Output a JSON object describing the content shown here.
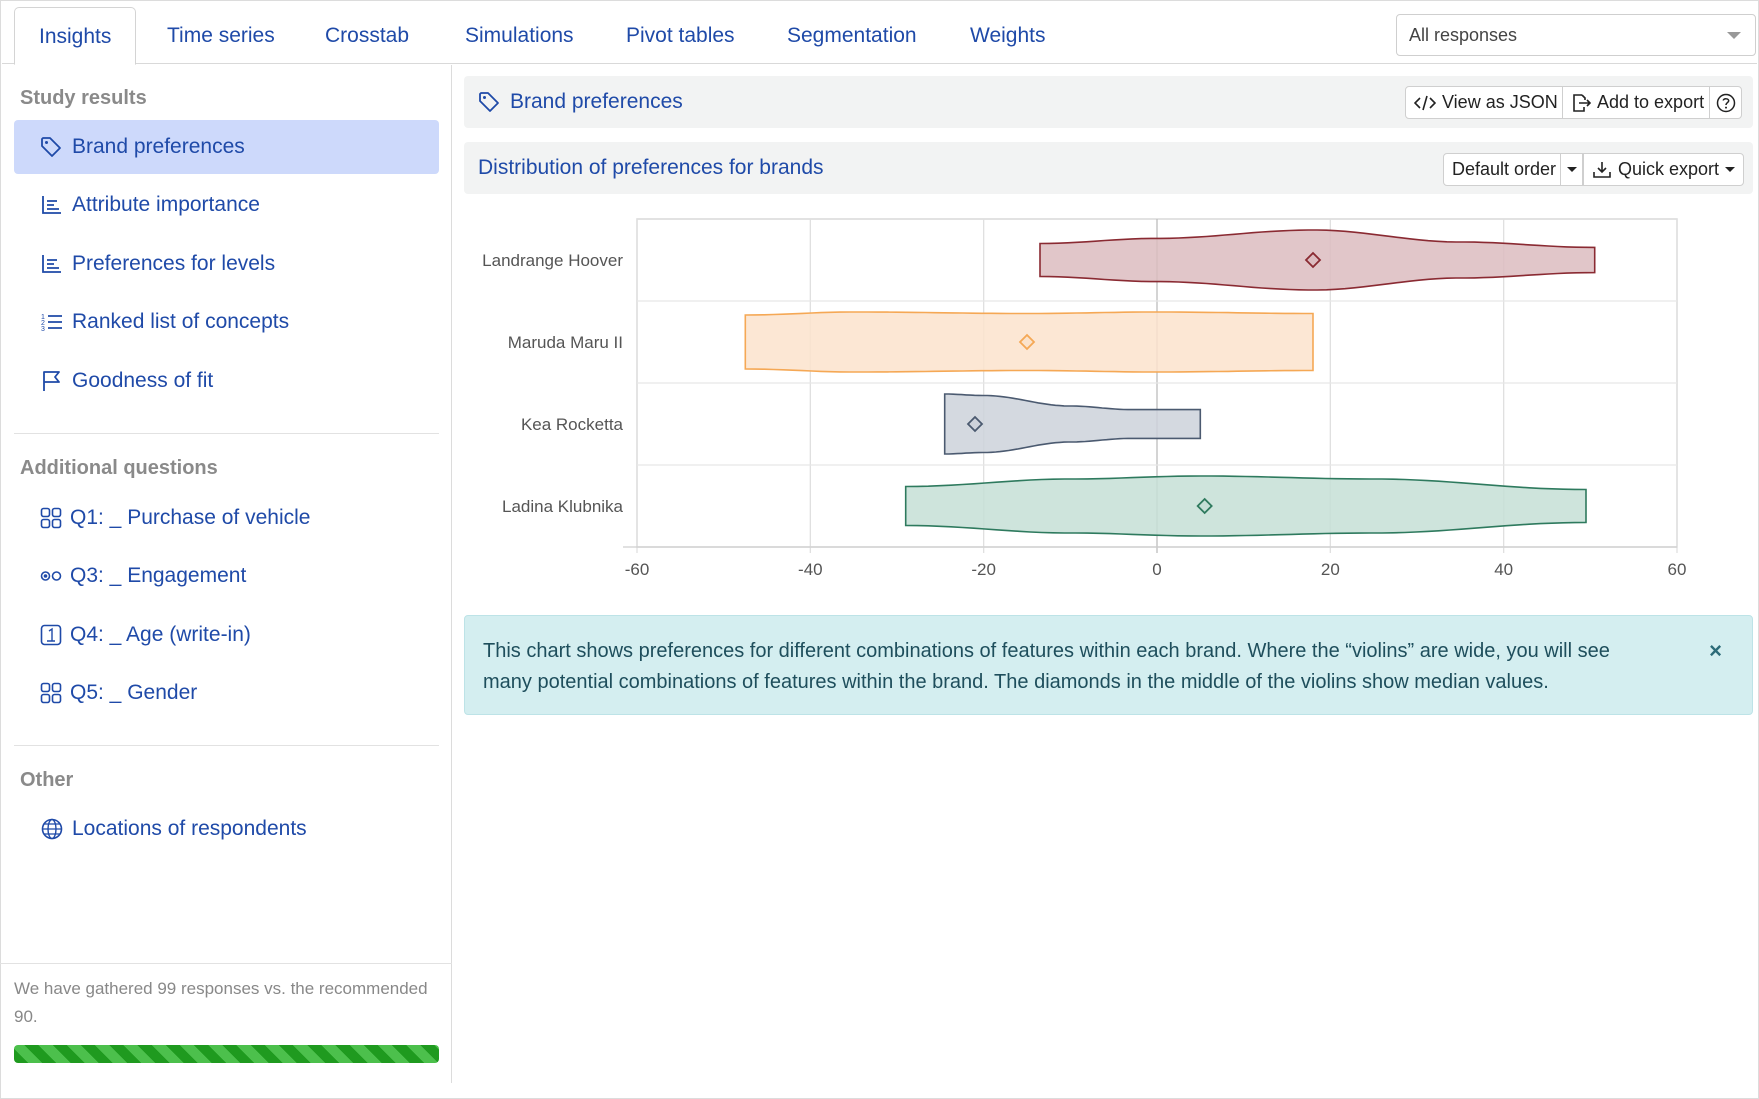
{
  "tabs": [
    {
      "label": "Insights",
      "active": true
    },
    {
      "label": "Time series"
    },
    {
      "label": "Crosstab"
    },
    {
      "label": "Simulations"
    },
    {
      "label": "Pivot tables"
    },
    {
      "label": "Segmentation"
    },
    {
      "label": "Weights"
    }
  ],
  "response_filter": {
    "selected": "All responses"
  },
  "sidebar": {
    "study_results_title": "Study results",
    "study_results": [
      {
        "label": "Brand preferences",
        "icon": "tag-icon",
        "active": true
      },
      {
        "label": "Attribute importance",
        "icon": "bar-chart-icon"
      },
      {
        "label": "Preferences for levels",
        "icon": "bar-chart-icon"
      },
      {
        "label": "Ranked list of concepts",
        "icon": "numbered-list-icon"
      },
      {
        "label": "Goodness of fit",
        "icon": "flag-icon"
      }
    ],
    "additional_title": "Additional questions",
    "additional": [
      {
        "label": "Q1: _ Purchase of vehicle",
        "icon": "grid-choice-icon"
      },
      {
        "label": "Q3: _ Engagement",
        "icon": "radio-choice-icon"
      },
      {
        "label": "Q4: _ Age (write-in)",
        "icon": "number-input-icon"
      },
      {
        "label": "Q5: _ Gender",
        "icon": "grid-choice-icon"
      }
    ],
    "other_title": "Other",
    "other": [
      {
        "label": "Locations of respondents",
        "icon": "globe-icon"
      }
    ],
    "footer_text": "We have gathered 99 responses vs. the recommended 90.",
    "progress_percent": 100
  },
  "main": {
    "section_title": "Brand preferences",
    "view_json_label": "View as JSON",
    "add_export_label": "Add to export",
    "chart_title": "Distribution of preferences for brands",
    "order_label": "Default order",
    "quick_export_label": "Quick export",
    "info_text": "This chart shows preferences for different combinations of features within each brand. Where the “violins” are wide, you will see many potential combinations of features within the brand. The diamonds in the middle of the violins show median values.",
    "info_close": "×"
  },
  "chart_data": {
    "type": "violin",
    "title": "Distribution of preferences for brands",
    "xlim": [
      -60,
      60
    ],
    "xticks": [
      -60,
      -40,
      -20,
      0,
      20,
      40,
      60
    ],
    "categories": [
      "Landrange Hoover",
      "Maruda Maru II",
      "Kea Rocketta",
      "Ladina Klubnika"
    ],
    "series": [
      {
        "name": "Landrange Hoover",
        "min": -13.5,
        "max": 50.5,
        "median": 18,
        "color": "#8a2a32",
        "fill": "#dcbcc0",
        "profile": [
          [
            -13.5,
            0.55
          ],
          [
            0,
            0.72
          ],
          [
            18,
            1.0
          ],
          [
            35,
            0.6
          ],
          [
            50.5,
            0.42
          ]
        ]
      },
      {
        "name": "Maruda Maru II",
        "min": -47.5,
        "max": 18,
        "median": -15,
        "color": "#f5a855",
        "fill": "#fbe3cc",
        "profile": [
          [
            -47.5,
            0.9
          ],
          [
            -35,
            1.0
          ],
          [
            -15,
            0.95
          ],
          [
            0,
            1.0
          ],
          [
            18,
            0.95
          ]
        ]
      },
      {
        "name": "Kea Rocketta",
        "min": -24.5,
        "max": 5,
        "median": -21,
        "color": "#4b5a70",
        "fill": "#cdd2db",
        "profile": [
          [
            -24.5,
            1.0
          ],
          [
            -20,
            0.95
          ],
          [
            -10,
            0.6
          ],
          [
            -3,
            0.48
          ],
          [
            5,
            0.48
          ]
        ]
      },
      {
        "name": "Ladina Klubnika",
        "min": -29,
        "max": 49.5,
        "median": 5.5,
        "color": "#2e7a5e",
        "fill": "#c5dfd6",
        "profile": [
          [
            -29,
            0.65
          ],
          [
            -10,
            0.9
          ],
          [
            5,
            1.0
          ],
          [
            25,
            0.9
          ],
          [
            49.5,
            0.55
          ]
        ]
      }
    ]
  }
}
